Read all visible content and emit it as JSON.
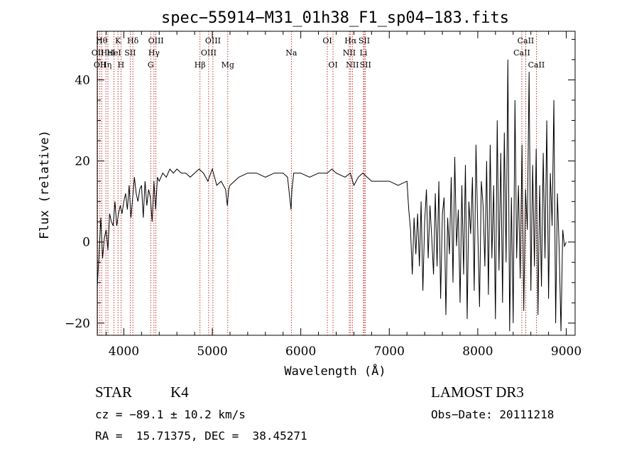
{
  "chart_data": {
    "type": "line",
    "title": "spec−55914−M31_01h38_F1_sp04−183.fits",
    "xlabel": "Wavelength (Å)",
    "ylabel": "Flux (relative)",
    "xlim": [
      3700,
      9100
    ],
    "ylim": [
      -23,
      52
    ],
    "xticks": [
      {
        "value": 4000,
        "label": "4000"
      },
      {
        "value": 5000,
        "label": "5000"
      },
      {
        "value": 6000,
        "label": "6000"
      },
      {
        "value": 7000,
        "label": "7000"
      },
      {
        "value": 8000,
        "label": "8000"
      },
      {
        "value": 9000,
        "label": "9000"
      }
    ],
    "yticks": [
      {
        "value": -20,
        "label": "−20"
      },
      {
        "value": 0,
        "label": "0"
      },
      {
        "value": 20,
        "label": "20"
      },
      {
        "value": 40,
        "label": "40"
      }
    ],
    "series": [
      {
        "name": "spectrum",
        "x": [
          3700,
          3720,
          3740,
          3760,
          3780,
          3800,
          3820,
          3840,
          3860,
          3880,
          3900,
          3920,
          3940,
          3960,
          3980,
          4000,
          4020,
          4040,
          4060,
          4080,
          4100,
          4120,
          4140,
          4160,
          4180,
          4200,
          4220,
          4240,
          4260,
          4280,
          4300,
          4320,
          4340,
          4360,
          4380,
          4400,
          4440,
          4480,
          4520,
          4560,
          4600,
          4650,
          4700,
          4750,
          4800,
          4850,
          4900,
          4950,
          5000,
          5050,
          5100,
          5150,
          5170,
          5185,
          5200,
          5250,
          5300,
          5400,
          5500,
          5600,
          5700,
          5800,
          5850,
          5890,
          5900,
          5920,
          6000,
          6100,
          6200,
          6300,
          6350,
          6400,
          6500,
          6560,
          6600,
          6650,
          6700,
          6750,
          6800,
          6900,
          7000,
          7100,
          7200,
          7220,
          7240,
          7260,
          7280,
          7300,
          7320,
          7340,
          7360,
          7380,
          7400,
          7420,
          7440,
          7460,
          7480,
          7500,
          7520,
          7540,
          7560,
          7580,
          7600,
          7620,
          7640,
          7660,
          7680,
          7700,
          7720,
          7740,
          7760,
          7780,
          7800,
          7820,
          7840,
          7860,
          7880,
          7900,
          7920,
          7940,
          7960,
          7980,
          8000,
          8020,
          8040,
          8060,
          8080,
          8100,
          8120,
          8140,
          8160,
          8180,
          8200,
          8220,
          8240,
          8260,
          8280,
          8300,
          8320,
          8340,
          8360,
          8380,
          8400,
          8420,
          8440,
          8460,
          8480,
          8500,
          8520,
          8540,
          8560,
          8580,
          8600,
          8620,
          8640,
          8660,
          8680,
          8700,
          8720,
          8740,
          8760,
          8780,
          8800,
          8820,
          8840,
          8860,
          8880,
          8900,
          8920,
          8940,
          8960,
          8980,
          9000
        ],
        "y": [
          -11,
          -3,
          6,
          -4,
          1,
          3,
          -2,
          7,
          5,
          4,
          10,
          4,
          7,
          9,
          7,
          10,
          12,
          8,
          14,
          6,
          11,
          16,
          12,
          10,
          13,
          14,
          6,
          15,
          9,
          13,
          11,
          5,
          15,
          8,
          16,
          15,
          17,
          16,
          18,
          17,
          18,
          17,
          17,
          16,
          17,
          18,
          17,
          15,
          18,
          14,
          15,
          13,
          9,
          13,
          14,
          15,
          16,
          17,
          17,
          16,
          17,
          17,
          16,
          8,
          13,
          17,
          17,
          16,
          17,
          17,
          18,
          17,
          16,
          17,
          14,
          16,
          17,
          16,
          15,
          15,
          15,
          14,
          15,
          8,
          3,
          -8,
          6,
          -3,
          7,
          -6,
          10,
          -12,
          5,
          13,
          -4,
          9,
          1,
          -8,
          12,
          -6,
          15,
          -14,
          7,
          11,
          -18,
          6,
          -3,
          16,
          -10,
          21,
          -1,
          8,
          -15,
          14,
          -8,
          19,
          -19,
          10,
          2,
          16,
          -12,
          24,
          3,
          -16,
          15,
          9,
          -6,
          20,
          -13,
          24,
          -4,
          14,
          -19,
          30,
          -7,
          22,
          -15,
          27,
          -5,
          45,
          -22,
          11,
          -20,
          35,
          -4,
          14,
          -9,
          24,
          -17,
          13,
          3,
          42,
          -12,
          19,
          -6,
          23,
          -18,
          14,
          -11,
          22,
          -4,
          30,
          -14,
          17,
          4,
          35,
          -20,
          12,
          -2,
          -22,
          3,
          -1,
          0
        ],
        "color": "#000000"
      }
    ],
    "lines": [
      {
        "x": 3705,
        "label": "OII",
        "row": 2
      },
      {
        "x": 3730,
        "label": "OII",
        "row": 3
      },
      {
        "x": 3750,
        "label": "Hθ",
        "row": 1
      },
      {
        "x": 3797,
        "label": "Hη",
        "row": 3
      },
      {
        "x": 3820,
        "label": "HeI",
        "row": 2
      },
      {
        "x": 3889,
        "label": "HeI",
        "row": 2
      },
      {
        "x": 3934,
        "label": "K",
        "row": 1
      },
      {
        "x": 3968,
        "label": "H",
        "row": 3
      },
      {
        "x": 4072,
        "label": "SII",
        "row": 2
      },
      {
        "x": 4102,
        "label": "Hδ",
        "row": 1
      },
      {
        "x": 4304,
        "label": "G",
        "row": 3
      },
      {
        "x": 4341,
        "label": "Hγ",
        "row": 2
      },
      {
        "x": 4363,
        "label": "OIII",
        "row": 1
      },
      {
        "x": 4861,
        "label": "Hβ",
        "row": 3
      },
      {
        "x": 4959,
        "label": "OIII",
        "row": 2
      },
      {
        "x": 5007,
        "label": "OIII",
        "row": 1
      },
      {
        "x": 5175,
        "label": "Mg",
        "row": 3
      },
      {
        "x": 5893,
        "label": "Na",
        "row": 2
      },
      {
        "x": 6300,
        "label": "OI",
        "row": 1
      },
      {
        "x": 6364,
        "label": "OI",
        "row": 3
      },
      {
        "x": 6548,
        "label": "NII",
        "row": 2
      },
      {
        "x": 6563,
        "label": "Hα",
        "row": 1
      },
      {
        "x": 6583,
        "label": "NII",
        "row": 3
      },
      {
        "x": 6708,
        "label": "Li",
        "row": 2
      },
      {
        "x": 6717,
        "label": "SII",
        "row": 1
      },
      {
        "x": 6731,
        "label": "SII",
        "row": 3
      },
      {
        "x": 8498,
        "label": "CaII",
        "row": 2
      },
      {
        "x": 8542,
        "label": "CaII",
        "row": 1
      },
      {
        "x": 8662,
        "label": "CaII",
        "row": 3
      }
    ]
  },
  "footer": {
    "object_class": "STAR",
    "subclass": "K4",
    "survey": "LAMOST DR3",
    "redshift": "cz = −89.1 ± 10.2 km/s",
    "obs_date": "Obs−Date: 20111218",
    "coords": "RA =  15.71375, DEC =  38.45271"
  }
}
